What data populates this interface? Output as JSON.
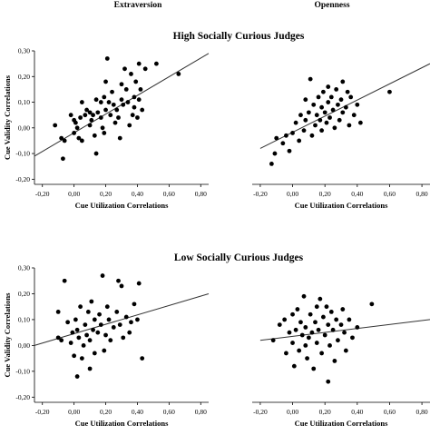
{
  "column_titles": [
    "Extraversion",
    "Openness"
  ],
  "section_titles": [
    "High Socially Curious Judges",
    "Low Socially Curious Judges"
  ],
  "chart_data": [
    {
      "type": "scatter",
      "title": "Extraversion",
      "group": "High Socially Curious Judges",
      "xlabel": "Cue Utilization Correlations",
      "ylabel": "Cue Validity Correlations",
      "xlim": [
        -0.25,
        0.85
      ],
      "ylim": [
        -0.22,
        0.3
      ],
      "xticks": [
        "-0,20",
        "0,00",
        "0,20",
        "0,40",
        "0,60",
        "0,80"
      ],
      "yticks": [
        "-0,20",
        "-0,10",
        "0,00",
        "0,10",
        "0,20",
        "0,30"
      ],
      "show_y_axis": true,
      "trend_line": {
        "x": [
          -0.25,
          0.85
        ],
        "y": [
          -0.11,
          0.29
        ]
      },
      "points": [
        {
          "x": -0.12,
          "y": 0.01
        },
        {
          "x": -0.08,
          "y": -0.04
        },
        {
          "x": -0.07,
          "y": -0.12
        },
        {
          "x": -0.06,
          "y": -0.05
        },
        {
          "x": -0.02,
          "y": 0.05
        },
        {
          "x": 0.0,
          "y": 0.03
        },
        {
          "x": 0.0,
          "y": -0.02
        },
        {
          "x": 0.01,
          "y": 0.02
        },
        {
          "x": 0.02,
          "y": 0.0
        },
        {
          "x": 0.03,
          "y": -0.04
        },
        {
          "x": 0.04,
          "y": 0.04
        },
        {
          "x": 0.05,
          "y": 0.1
        },
        {
          "x": 0.05,
          "y": -0.05
        },
        {
          "x": 0.07,
          "y": 0.05
        },
        {
          "x": 0.08,
          "y": 0.07
        },
        {
          "x": 0.1,
          "y": 0.01
        },
        {
          "x": 0.1,
          "y": 0.06
        },
        {
          "x": 0.11,
          "y": 0.03
        },
        {
          "x": 0.12,
          "y": 0.05
        },
        {
          "x": 0.13,
          "y": -0.03
        },
        {
          "x": 0.14,
          "y": 0.11
        },
        {
          "x": 0.14,
          "y": -0.1
        },
        {
          "x": 0.15,
          "y": 0.06
        },
        {
          "x": 0.17,
          "y": 0.1
        },
        {
          "x": 0.17,
          "y": 0.04
        },
        {
          "x": 0.18,
          "y": 0.0
        },
        {
          "x": 0.19,
          "y": 0.12
        },
        {
          "x": 0.19,
          "y": -0.02
        },
        {
          "x": 0.2,
          "y": 0.07
        },
        {
          "x": 0.2,
          "y": 0.18
        },
        {
          "x": 0.21,
          "y": 0.27
        },
        {
          "x": 0.22,
          "y": 0.1
        },
        {
          "x": 0.23,
          "y": 0.05
        },
        {
          "x": 0.24,
          "y": 0.14
        },
        {
          "x": 0.25,
          "y": 0.09
        },
        {
          "x": 0.26,
          "y": 0.02
        },
        {
          "x": 0.27,
          "y": 0.07
        },
        {
          "x": 0.28,
          "y": 0.04
        },
        {
          "x": 0.29,
          "y": -0.04
        },
        {
          "x": 0.3,
          "y": 0.11
        },
        {
          "x": 0.3,
          "y": 0.17
        },
        {
          "x": 0.31,
          "y": 0.09
        },
        {
          "x": 0.32,
          "y": 0.23
        },
        {
          "x": 0.33,
          "y": 0.15
        },
        {
          "x": 0.34,
          "y": 0.1
        },
        {
          "x": 0.35,
          "y": 0.01
        },
        {
          "x": 0.36,
          "y": 0.21
        },
        {
          "x": 0.37,
          "y": 0.05
        },
        {
          "x": 0.38,
          "y": 0.12
        },
        {
          "x": 0.38,
          "y": 0.08
        },
        {
          "x": 0.39,
          "y": 0.18
        },
        {
          "x": 0.4,
          "y": 0.04
        },
        {
          "x": 0.41,
          "y": 0.25
        },
        {
          "x": 0.41,
          "y": 0.11
        },
        {
          "x": 0.42,
          "y": 0.15
        },
        {
          "x": 0.43,
          "y": 0.07
        },
        {
          "x": 0.45,
          "y": 0.23
        },
        {
          "x": 0.52,
          "y": 0.25
        },
        {
          "x": 0.66,
          "y": 0.21
        }
      ]
    },
    {
      "type": "scatter",
      "title": "Openness",
      "group": "High Socially Curious Judges",
      "xlabel": "Cue Utilization Correlations",
      "ylabel": "",
      "xlim": [
        -0.25,
        0.85
      ],
      "ylim": [
        -0.22,
        0.3
      ],
      "xticks": [
        "-0,20",
        "0,00",
        "0,20",
        "0,40",
        "0,60",
        "0,80"
      ],
      "yticks": [],
      "show_y_axis": false,
      "trend_line": {
        "x": [
          -0.2,
          0.85
        ],
        "y": [
          -0.08,
          0.25
        ]
      },
      "points": [
        {
          "x": -0.13,
          "y": -0.14
        },
        {
          "x": -0.11,
          "y": -0.1
        },
        {
          "x": -0.1,
          "y": -0.04
        },
        {
          "x": -0.06,
          "y": -0.06
        },
        {
          "x": -0.04,
          "y": -0.03
        },
        {
          "x": -0.02,
          "y": -0.09
        },
        {
          "x": 0.0,
          "y": -0.02
        },
        {
          "x": 0.02,
          "y": 0.02
        },
        {
          "x": 0.04,
          "y": -0.05
        },
        {
          "x": 0.05,
          "y": 0.05
        },
        {
          "x": 0.07,
          "y": -0.01
        },
        {
          "x": 0.08,
          "y": 0.11
        },
        {
          "x": 0.08,
          "y": 0.03
        },
        {
          "x": 0.1,
          "y": 0.06
        },
        {
          "x": 0.11,
          "y": 0.19
        },
        {
          "x": 0.12,
          "y": -0.03
        },
        {
          "x": 0.13,
          "y": 0.09
        },
        {
          "x": 0.14,
          "y": 0.01
        },
        {
          "x": 0.15,
          "y": 0.05
        },
        {
          "x": 0.16,
          "y": 0.12
        },
        {
          "x": 0.17,
          "y": 0.03
        },
        {
          "x": 0.18,
          "y": 0.08
        },
        {
          "x": 0.18,
          "y": -0.01
        },
        {
          "x": 0.19,
          "y": 0.14
        },
        {
          "x": 0.2,
          "y": 0.06
        },
        {
          "x": 0.21,
          "y": 0.02
        },
        {
          "x": 0.22,
          "y": 0.1
        },
        {
          "x": 0.22,
          "y": 0.16
        },
        {
          "x": 0.23,
          "y": 0.04
        },
        {
          "x": 0.24,
          "y": 0.12
        },
        {
          "x": 0.25,
          "y": 0.07
        },
        {
          "x": 0.26,
          "y": 0.0
        },
        {
          "x": 0.27,
          "y": 0.15
        },
        {
          "x": 0.28,
          "y": 0.09
        },
        {
          "x": 0.29,
          "y": 0.03
        },
        {
          "x": 0.3,
          "y": 0.11
        },
        {
          "x": 0.31,
          "y": 0.06
        },
        {
          "x": 0.31,
          "y": 0.18
        },
        {
          "x": 0.33,
          "y": 0.08
        },
        {
          "x": 0.34,
          "y": 0.14
        },
        {
          "x": 0.35,
          "y": 0.01
        },
        {
          "x": 0.36,
          "y": 0.12
        },
        {
          "x": 0.38,
          "y": 0.05
        },
        {
          "x": 0.4,
          "y": 0.09
        },
        {
          "x": 0.42,
          "y": 0.02
        },
        {
          "x": 0.6,
          "y": 0.14
        }
      ]
    },
    {
      "type": "scatter",
      "title": "",
      "group": "Low Socially Curious Judges",
      "xlabel": "Cue Utilization Correlations",
      "ylabel": "Cue Validity Correlations",
      "xlim": [
        -0.25,
        0.85
      ],
      "ylim": [
        -0.22,
        0.3
      ],
      "xticks": [
        "-0,20",
        "0,00",
        "0,20",
        "0,40",
        "0,60",
        "0,80"
      ],
      "yticks": [
        "-0,20",
        "-0,10",
        "0,00",
        "0,10",
        "0,20",
        "0,30"
      ],
      "show_y_axis": true,
      "trend_line": {
        "x": [
          -0.25,
          0.85
        ],
        "y": [
          0.0,
          0.2
        ]
      },
      "points": [
        {
          "x": -0.1,
          "y": 0.03
        },
        {
          "x": -0.1,
          "y": 0.13
        },
        {
          "x": -0.08,
          "y": 0.02
        },
        {
          "x": -0.06,
          "y": 0.25
        },
        {
          "x": -0.04,
          "y": 0.09
        },
        {
          "x": -0.02,
          "y": 0.01
        },
        {
          "x": -0.01,
          "y": 0.05
        },
        {
          "x": 0.0,
          "y": -0.04
        },
        {
          "x": 0.01,
          "y": 0.1
        },
        {
          "x": 0.02,
          "y": 0.06
        },
        {
          "x": 0.02,
          "y": -0.12
        },
        {
          "x": 0.03,
          "y": 0.03
        },
        {
          "x": 0.04,
          "y": 0.15
        },
        {
          "x": 0.05,
          "y": -0.05
        },
        {
          "x": 0.06,
          "y": 0.0
        },
        {
          "x": 0.07,
          "y": 0.08
        },
        {
          "x": 0.08,
          "y": 0.04
        },
        {
          "x": 0.09,
          "y": 0.13
        },
        {
          "x": 0.1,
          "y": -0.09
        },
        {
          "x": 0.1,
          "y": 0.02
        },
        {
          "x": 0.11,
          "y": 0.17
        },
        {
          "x": 0.12,
          "y": 0.06
        },
        {
          "x": 0.13,
          "y": 0.1
        },
        {
          "x": 0.13,
          "y": -0.03
        },
        {
          "x": 0.15,
          "y": 0.05
        },
        {
          "x": 0.16,
          "y": 0.12
        },
        {
          "x": 0.17,
          "y": 0.08
        },
        {
          "x": 0.18,
          "y": 0.27
        },
        {
          "x": 0.19,
          "y": -0.02
        },
        {
          "x": 0.2,
          "y": 0.04
        },
        {
          "x": 0.21,
          "y": 0.15
        },
        {
          "x": 0.22,
          "y": 0.1
        },
        {
          "x": 0.23,
          "y": 0.02
        },
        {
          "x": 0.25,
          "y": 0.07
        },
        {
          "x": 0.27,
          "y": 0.13
        },
        {
          "x": 0.28,
          "y": 0.25
        },
        {
          "x": 0.29,
          "y": 0.08
        },
        {
          "x": 0.3,
          "y": 0.23
        },
        {
          "x": 0.31,
          "y": 0.03
        },
        {
          "x": 0.33,
          "y": 0.11
        },
        {
          "x": 0.35,
          "y": 0.05
        },
        {
          "x": 0.36,
          "y": 0.09
        },
        {
          "x": 0.38,
          "y": 0.16
        },
        {
          "x": 0.4,
          "y": 0.1
        },
        {
          "x": 0.41,
          "y": 0.24
        },
        {
          "x": 0.43,
          "y": -0.05
        }
      ]
    },
    {
      "type": "scatter",
      "title": "",
      "group": "Low Socially Curious Judges",
      "xlabel": "Cue Utilization Correlations",
      "ylabel": "",
      "xlim": [
        -0.25,
        0.85
      ],
      "ylim": [
        -0.22,
        0.3
      ],
      "xticks": [
        "-0,20",
        "0,00",
        "0,20",
        "0,40",
        "0,60",
        "0,80"
      ],
      "yticks": [],
      "show_y_axis": false,
      "trend_line": {
        "x": [
          -0.2,
          0.85
        ],
        "y": [
          0.02,
          0.1
        ]
      },
      "points": [
        {
          "x": -0.12,
          "y": 0.02
        },
        {
          "x": -0.08,
          "y": 0.08
        },
        {
          "x": -0.05,
          "y": 0.1
        },
        {
          "x": -0.04,
          "y": -0.03
        },
        {
          "x": -0.02,
          "y": 0.05
        },
        {
          "x": 0.0,
          "y": 0.12
        },
        {
          "x": 0.0,
          "y": 0.01
        },
        {
          "x": 0.01,
          "y": -0.08
        },
        {
          "x": 0.02,
          "y": 0.06
        },
        {
          "x": 0.03,
          "y": 0.14
        },
        {
          "x": 0.04,
          "y": -0.02
        },
        {
          "x": 0.05,
          "y": 0.09
        },
        {
          "x": 0.06,
          "y": 0.04
        },
        {
          "x": 0.07,
          "y": 0.19
        },
        {
          "x": 0.08,
          "y": 0.0
        },
        {
          "x": 0.08,
          "y": 0.07
        },
        {
          "x": 0.09,
          "y": -0.05
        },
        {
          "x": 0.1,
          "y": 0.03
        },
        {
          "x": 0.11,
          "y": 0.12
        },
        {
          "x": 0.12,
          "y": 0.05
        },
        {
          "x": 0.13,
          "y": -0.09
        },
        {
          "x": 0.14,
          "y": 0.09
        },
        {
          "x": 0.15,
          "y": 0.01
        },
        {
          "x": 0.15,
          "y": 0.15
        },
        {
          "x": 0.16,
          "y": 0.06
        },
        {
          "x": 0.17,
          "y": 0.18
        },
        {
          "x": 0.18,
          "y": -0.03
        },
        {
          "x": 0.19,
          "y": 0.11
        },
        {
          "x": 0.2,
          "y": 0.04
        },
        {
          "x": 0.21,
          "y": 0.15
        },
        {
          "x": 0.22,
          "y": -0.14
        },
        {
          "x": 0.22,
          "y": 0.08
        },
        {
          "x": 0.23,
          "y": 0.0
        },
        {
          "x": 0.24,
          "y": 0.13
        },
        {
          "x": 0.25,
          "y": 0.06
        },
        {
          "x": 0.26,
          "y": -0.06
        },
        {
          "x": 0.27,
          "y": 0.1
        },
        {
          "x": 0.28,
          "y": 0.02
        },
        {
          "x": 0.3,
          "y": 0.08
        },
        {
          "x": 0.31,
          "y": 0.14
        },
        {
          "x": 0.32,
          "y": 0.05
        },
        {
          "x": 0.33,
          "y": -0.02
        },
        {
          "x": 0.35,
          "y": 0.1
        },
        {
          "x": 0.37,
          "y": 0.03
        },
        {
          "x": 0.4,
          "y": 0.07
        },
        {
          "x": 0.49,
          "y": 0.16
        }
      ]
    }
  ]
}
